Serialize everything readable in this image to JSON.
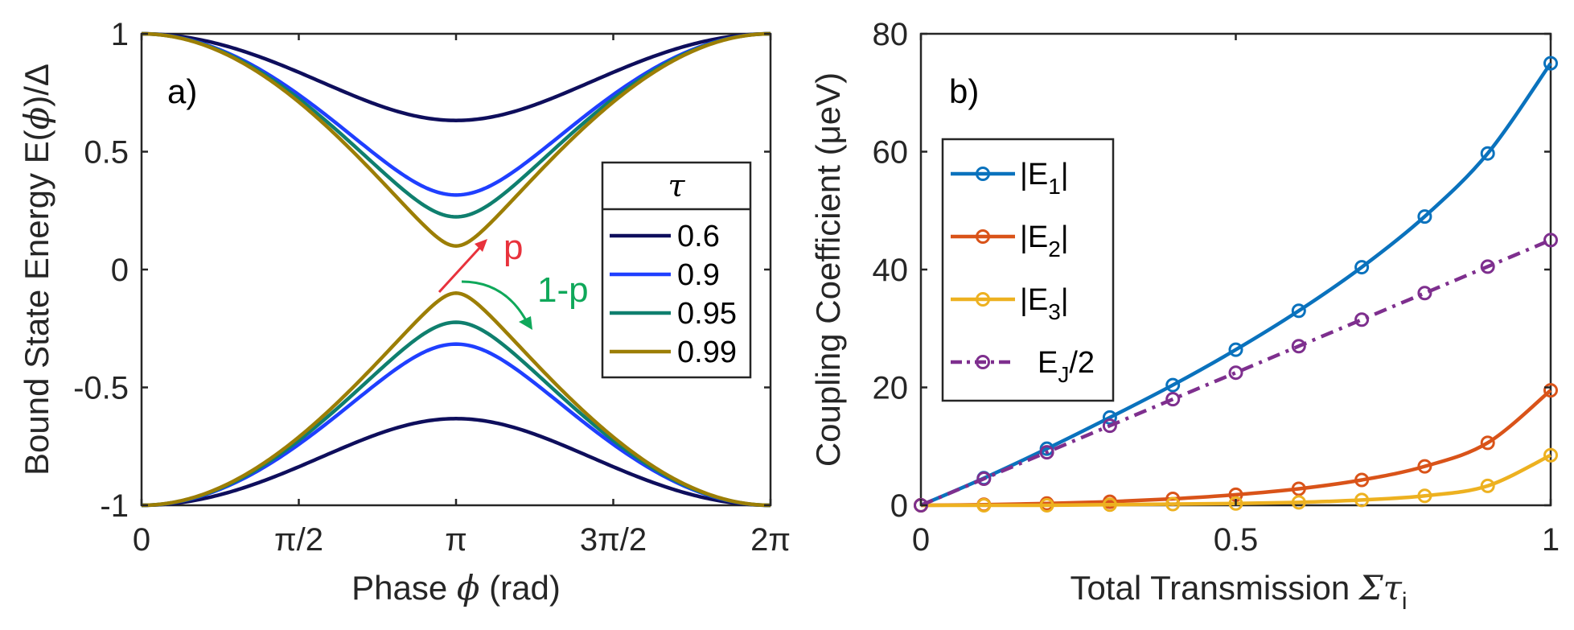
{
  "chart_data": [
    {
      "type": "line",
      "panel_label": "a)",
      "xlabel_prefix": "Phase ",
      "xlabel_symbol": "ϕ",
      "xlabel_suffix": " (rad)",
      "ylabel_prefix": "Bound State Energy E(",
      "ylabel_symbol": "ϕ",
      "ylabel_suffix": ")/Δ",
      "xlim": [
        0,
        6.2832
      ],
      "ylim": [
        -1,
        1
      ],
      "xticks": [
        {
          "value": 0,
          "label": "0"
        },
        {
          "value": 1.5708,
          "label": "π/2"
        },
        {
          "value": 3.1416,
          "label": "π"
        },
        {
          "value": 4.7124,
          "label": "3π/2"
        },
        {
          "value": 6.2832,
          "label": "2π"
        }
      ],
      "yticks": [
        {
          "value": 1,
          "label": "1"
        },
        {
          "value": 0.5,
          "label": "0.5"
        },
        {
          "value": 0,
          "label": "0"
        },
        {
          "value": -0.5,
          "label": "-0.5"
        },
        {
          "value": -1,
          "label": "-1"
        }
      ],
      "function": "E = ±sqrt(1 - tau*sin^2(phi/2))",
      "legend_title": "τ",
      "series": [
        {
          "name": "0.6",
          "tau": 0.6,
          "color": "#0e0e5c"
        },
        {
          "name": "0.9",
          "tau": 0.9,
          "color": "#1f3fff"
        },
        {
          "name": "0.95",
          "tau": 0.95,
          "color": "#0f7f6e"
        },
        {
          "name": "0.99",
          "tau": 0.99,
          "color": "#9c7e05"
        }
      ],
      "annotations": [
        {
          "text": "p",
          "color": "#e8323c"
        },
        {
          "text": "1-p",
          "color": "#0fa85a"
        }
      ]
    },
    {
      "type": "line",
      "panel_label": "b)",
      "xlabel_prefix": "Total Transmission ",
      "xlabel_symbol": "Στ",
      "xlabel_subscript": "i",
      "ylabel": "Coupling Coefficient (μeV)",
      "xlim": [
        0,
        1
      ],
      "ylim": [
        0,
        80
      ],
      "xticks": [
        {
          "value": 0,
          "label": "0"
        },
        {
          "value": 0.5,
          "label": "0.5"
        },
        {
          "value": 1,
          "label": "1"
        }
      ],
      "yticks": [
        {
          "value": 0,
          "label": "0"
        },
        {
          "value": 20,
          "label": "20"
        },
        {
          "value": 40,
          "label": "40"
        },
        {
          "value": 60,
          "label": "60"
        },
        {
          "value": 80,
          "label": "80"
        }
      ],
      "x": [
        0,
        0.1,
        0.2,
        0.3,
        0.4,
        0.5,
        0.6,
        0.7,
        0.8,
        0.9,
        1.0
      ],
      "series": [
        {
          "name": "|E1|",
          "label_main": "|E",
          "label_sub": "1",
          "label_end": "|",
          "color": "#0a72bd",
          "dash": "solid",
          "values": [
            0,
            4.6,
            9.6,
            14.9,
            20.4,
            26.4,
            33.0,
            40.4,
            49.0,
            59.7,
            75.0
          ]
        },
        {
          "name": "|E2|",
          "label_main": "|E",
          "label_sub": "2",
          "label_end": "|",
          "color": "#d95319",
          "dash": "solid",
          "values": [
            0,
            0.1,
            0.3,
            0.6,
            1.1,
            1.8,
            2.8,
            4.3,
            6.6,
            10.6,
            19.5
          ]
        },
        {
          "name": "|E3|",
          "label_main": "|E",
          "label_sub": "3",
          "label_end": "|",
          "color": "#edb120",
          "dash": "solid",
          "values": [
            0,
            0.0,
            0.0,
            0.1,
            0.2,
            0.3,
            0.5,
            0.9,
            1.6,
            3.3,
            8.5
          ]
        },
        {
          "name": "EJ/2",
          "label_main": "E",
          "label_sub": "J",
          "label_end": "/2",
          "color": "#7e2f8e",
          "dash": "dashdot",
          "values": [
            0,
            4.5,
            9.0,
            13.5,
            18.0,
            22.5,
            27.0,
            31.5,
            36.0,
            40.5,
            45.0
          ]
        }
      ]
    }
  ]
}
